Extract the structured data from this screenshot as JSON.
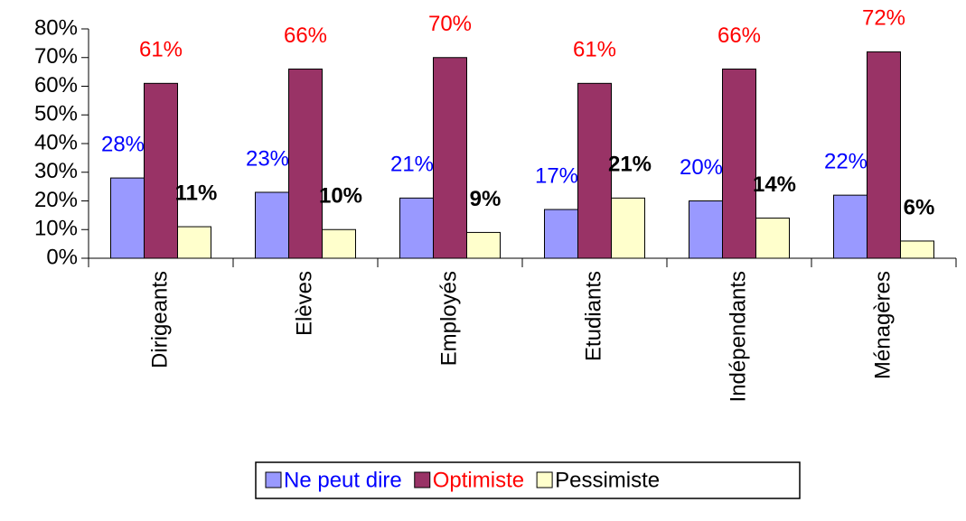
{
  "chart_data": {
    "type": "bar",
    "categories": [
      "Dirigeants",
      "Elèves",
      "Employés",
      "Etudiants",
      "Indépendants",
      "Ménagères"
    ],
    "series": [
      {
        "name": "Ne peut dire",
        "color": "#9999ff",
        "label_color": "#0000ff",
        "values": [
          28,
          23,
          21,
          17,
          20,
          22
        ],
        "value_labels": [
          "28%",
          "23%",
          "21%",
          "17%",
          "20%",
          "22%"
        ]
      },
      {
        "name": "Optimiste",
        "color": "#993366",
        "label_color": "#ff0000",
        "values": [
          61,
          66,
          70,
          61,
          66,
          72
        ],
        "value_labels": [
          "61%",
          "66%",
          "70%",
          "61%",
          "66%",
          "72%"
        ]
      },
      {
        "name": "Pessimiste",
        "color": "#ffffcc",
        "label_color": "#000000",
        "values": [
          11,
          10,
          9,
          21,
          14,
          6
        ],
        "value_labels": [
          "11%",
          "10%",
          "9%",
          "21%",
          "14%",
          "6%"
        ]
      }
    ],
    "ylim": [
      0,
      80
    ],
    "yticks": [
      {
        "value": 0,
        "label": "0%"
      },
      {
        "value": 10,
        "label": "10%"
      },
      {
        "value": 20,
        "label": "20%"
      },
      {
        "value": 30,
        "label": "30%"
      },
      {
        "value": 40,
        "label": "40%"
      },
      {
        "value": 50,
        "label": "50%"
      },
      {
        "value": 60,
        "label": "60%"
      },
      {
        "value": 70,
        "label": "70%"
      },
      {
        "value": 80,
        "label": "80%"
      }
    ],
    "grid": false,
    "legend": "bottom"
  }
}
